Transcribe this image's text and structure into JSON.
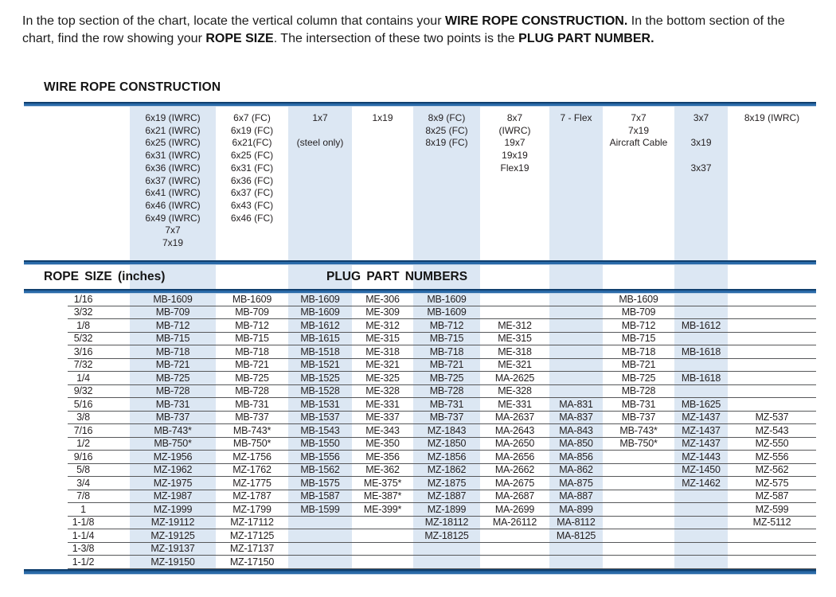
{
  "intro": {
    "segments": [
      {
        "text": "In the top section of the chart, locate the vertical column that contains your ",
        "bold": false
      },
      {
        "text": "WIRE ROPE CONSTRUCTION.",
        "bold": true
      },
      {
        "text": "  In the bottom section of the chart, find the row showing your ",
        "bold": false
      },
      {
        "text": "ROPE SIZE",
        "bold": true
      },
      {
        "text": ".  The intersection of these two points is the ",
        "bold": false
      },
      {
        "text": "PLUG PART NUMBER.",
        "bold": true
      }
    ]
  },
  "headings": {
    "construction": "WIRE ROPE CONSTRUCTION",
    "rope_size": "ROPE SIZE (inches)",
    "plug_part": "PLUG PART NUMBERS"
  },
  "construction": {
    "columns": [
      {
        "shaded": true,
        "lines": [
          "6x19 (IWRC)",
          "6x21 (IWRC)",
          "6x25 (IWRC)",
          "6x31 (IWRC)",
          "6x36 (IWRC)",
          "6x37 (IWRC)",
          "6x41 (IWRC)",
          "6x46 (IWRC)",
          "6x49 (IWRC)",
          "7x7",
          "7x19"
        ]
      },
      {
        "shaded": false,
        "lines": [
          "6x7 (FC)",
          "6x19 (FC)",
          "6x21(FC)",
          "6x25 (FC)",
          "6x31 (FC)",
          "6x36 (FC)",
          "6x37 (FC)",
          "6x43 (FC)",
          "6x46 (FC)"
        ]
      },
      {
        "shaded": true,
        "lines": [
          "1x7",
          "",
          "(steel only)"
        ]
      },
      {
        "shaded": false,
        "lines": [
          "1x19"
        ]
      },
      {
        "shaded": true,
        "lines": [
          "8x9 (FC)",
          "8x25 (FC)",
          "8x19 (FC)"
        ]
      },
      {
        "shaded": false,
        "lines": [
          "8x7",
          "(IWRC)",
          "19x7",
          "19x19",
          "Flex19"
        ]
      },
      {
        "shaded": true,
        "lines": [
          "7 -  Flex"
        ]
      },
      {
        "shaded": false,
        "lines": [
          "7x7",
          "7x19",
          "Aircraft Cable"
        ]
      },
      {
        "shaded": true,
        "lines": [
          "3x7",
          "",
          "3x19",
          "",
          "3x37"
        ]
      },
      {
        "shaded": false,
        "lines": [
          "8x19 (IWRC)"
        ]
      }
    ]
  },
  "table": {
    "rows": [
      {
        "size": "1/16",
        "cells": [
          "MB-1609",
          "MB-1609",
          "MB-1609",
          "ME-306",
          "MB-1609",
          "",
          "",
          "MB-1609",
          "",
          ""
        ]
      },
      {
        "size": "3/32",
        "cells": [
          "MB-709",
          "MB-709",
          "MB-1609",
          "ME-309",
          "MB-1609",
          "",
          "",
          "MB-709",
          "",
          ""
        ]
      },
      {
        "size": "1/8",
        "cells": [
          "MB-712",
          "MB-712",
          "MB-1612",
          "ME-312",
          "MB-712",
          "ME-312",
          "",
          "MB-712",
          "MB-1612",
          ""
        ]
      },
      {
        "size": "5/32",
        "cells": [
          "MB-715",
          "MB-715",
          "MB-1615",
          "ME-315",
          "MB-715",
          "ME-315",
          "",
          "MB-715",
          "",
          ""
        ]
      },
      {
        "size": "3/16",
        "cells": [
          "MB-718",
          "MB-718",
          "MB-1518",
          "ME-318",
          "MB-718",
          "ME-318",
          "",
          "MB-718",
          "MB-1618",
          ""
        ]
      },
      {
        "size": "7/32",
        "cells": [
          "MB-721",
          "MB-721",
          "MB-1521",
          "ME-321",
          "MB-721",
          "ME-321",
          "",
          "MB-721",
          "",
          ""
        ]
      },
      {
        "size": "1/4",
        "cells": [
          "MB-725",
          "MB-725",
          "MB-1525",
          "ME-325",
          "MB-725",
          "MA-2625",
          "",
          "MB-725",
          "MB-1618",
          ""
        ]
      },
      {
        "size": "9/32",
        "cells": [
          "MB-728",
          "MB-728",
          "MB-1528",
          "ME-328",
          "MB-728",
          "ME-328",
          "",
          "MB-728",
          "",
          ""
        ]
      },
      {
        "size": "5/16",
        "cells": [
          "MB-731",
          "MB-731",
          "MB-1531",
          "ME-331",
          "MB-731",
          "ME-331",
          "MA-831",
          "MB-731",
          "MB-1625",
          ""
        ]
      },
      {
        "size": "3/8",
        "cells": [
          "MB-737",
          "MB-737",
          "MB-1537",
          "ME-337",
          "MB-737",
          "MA-2637",
          "MA-837",
          "MB-737",
          "MZ-1437",
          "MZ-537"
        ]
      },
      {
        "size": "7/16",
        "cells": [
          "MB-743*",
          "MB-743*",
          "MB-1543",
          "ME-343",
          "MZ-1843",
          "MA-2643",
          "MA-843",
          "MB-743*",
          "MZ-1437",
          "MZ-543"
        ]
      },
      {
        "size": "1/2",
        "cells": [
          "MB-750*",
          "MB-750*",
          "MB-1550",
          "ME-350",
          "MZ-1850",
          "MA-2650",
          "MA-850",
          "MB-750*",
          "MZ-1437",
          "MZ-550"
        ]
      },
      {
        "size": "9/16",
        "cells": [
          "MZ-1956",
          "MZ-1756",
          "MB-1556",
          "ME-356",
          "MZ-1856",
          "MA-2656",
          "MA-856",
          "",
          "MZ-1443",
          "MZ-556"
        ]
      },
      {
        "size": "5/8",
        "cells": [
          "MZ-1962",
          "MZ-1762",
          "MB-1562",
          "ME-362",
          "MZ-1862",
          "MA-2662",
          "MA-862",
          "",
          "MZ-1450",
          "MZ-562"
        ]
      },
      {
        "size": "3/4",
        "cells": [
          "MZ-1975",
          "MZ-1775",
          "MB-1575",
          "ME-375*",
          "MZ-1875",
          "MA-2675",
          "MA-875",
          "",
          "MZ-1462",
          "MZ-575"
        ]
      },
      {
        "size": "7/8",
        "cells": [
          "MZ-1987",
          "MZ-1787",
          "MB-1587",
          "ME-387*",
          "MZ-1887",
          "MA-2687",
          "MA-887",
          "",
          "",
          "MZ-587"
        ]
      },
      {
        "size": "1",
        "cells": [
          "MZ-1999",
          "MZ-1799",
          "MB-1599",
          "ME-399*",
          "MZ-1899",
          "MA-2699",
          "MA-899",
          "",
          "",
          "MZ-599"
        ]
      },
      {
        "size": "1-1/8",
        "cells": [
          "MZ-19112",
          "MZ-17112",
          "",
          "",
          "MZ-18112",
          "MA-26112",
          "MA-8112",
          "",
          "",
          "MZ-5112"
        ]
      },
      {
        "size": "1-1/4",
        "cells": [
          "MZ-19125",
          "MZ-17125",
          "",
          "",
          "MZ-18125",
          "",
          "MA-8125",
          "",
          "",
          ""
        ]
      },
      {
        "size": "1-3/8",
        "cells": [
          "MZ-19137",
          "MZ-17137",
          "",
          "",
          "",
          "",
          "",
          "",
          "",
          ""
        ]
      },
      {
        "size": "1-1/2",
        "cells": [
          "MZ-19150",
          "MZ-17150",
          "",
          "",
          "",
          "",
          "",
          "",
          "",
          ""
        ]
      }
    ]
  },
  "layout_bands": {
    "lefts": [
      133,
      332,
      489,
      660,
      817
    ],
    "widths": [
      108,
      80,
      84,
      67,
      67
    ]
  },
  "colors": {
    "band": "#dce7f3",
    "ruleDark": "#10406f",
    "ruleMid": "#2a6aa8",
    "ruleLight": "#b9cfe6",
    "line": "#57585a",
    "text": "#231f20"
  }
}
